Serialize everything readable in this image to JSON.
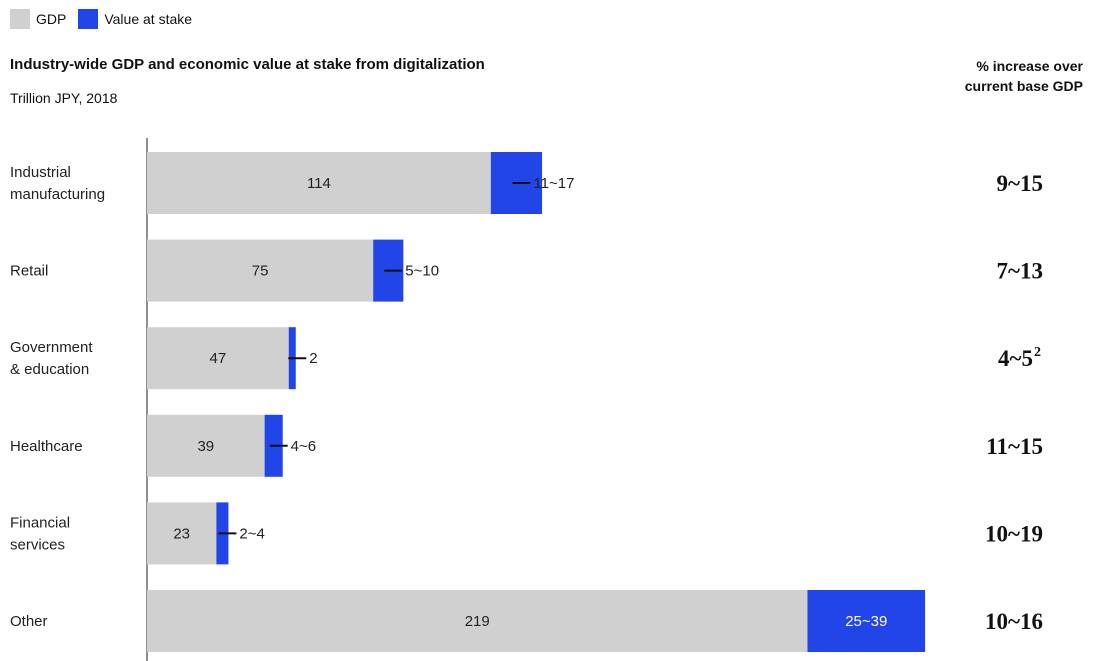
{
  "colors": {
    "gdp": "#d0d0d0",
    "stake": "#2145e6",
    "axis": "#222222"
  },
  "legend": {
    "gdp_label": "GDP",
    "stake_label": "Value at stake"
  },
  "title": "Industry-wide GDP and economic value at stake from digitalization",
  "subtitle": "Trillion JPY, 2018",
  "pct_header": {
    "line1": "% increase over",
    "line2": "current base GDP"
  },
  "chart_data": {
    "type": "bar",
    "orientation": "horizontal",
    "stacked": true,
    "categories": [
      [
        "Industrial",
        "manufacturing"
      ],
      [
        "Retail"
      ],
      [
        "Government",
        "& education"
      ],
      [
        "Healthcare"
      ],
      [
        "Financial",
        "services"
      ],
      [
        "Other"
      ]
    ],
    "series": [
      {
        "name": "GDP",
        "values": [
          114,
          75,
          47,
          39,
          23,
          219
        ],
        "labels": [
          "114",
          "75",
          "47",
          "39",
          "23",
          "219"
        ]
      },
      {
        "name": "Value at stake",
        "values": [
          17,
          10,
          2,
          6,
          4,
          39
        ],
        "labels": [
          "11~17",
          "5~10",
          "2",
          "4~6",
          "2~4",
          "25~39"
        ]
      }
    ],
    "pct_increase": [
      {
        "range": "9~15",
        "note": ""
      },
      {
        "range": "7~13",
        "note": ""
      },
      {
        "range": "4~5",
        "note": "2"
      },
      {
        "range": "11~15",
        "note": ""
      },
      {
        "range": "10~19",
        "note": ""
      },
      {
        "range": "10~16",
        "note": ""
      }
    ],
    "xlim": [
      0,
      264
    ],
    "grid": false,
    "legend_position": "top-left"
  }
}
